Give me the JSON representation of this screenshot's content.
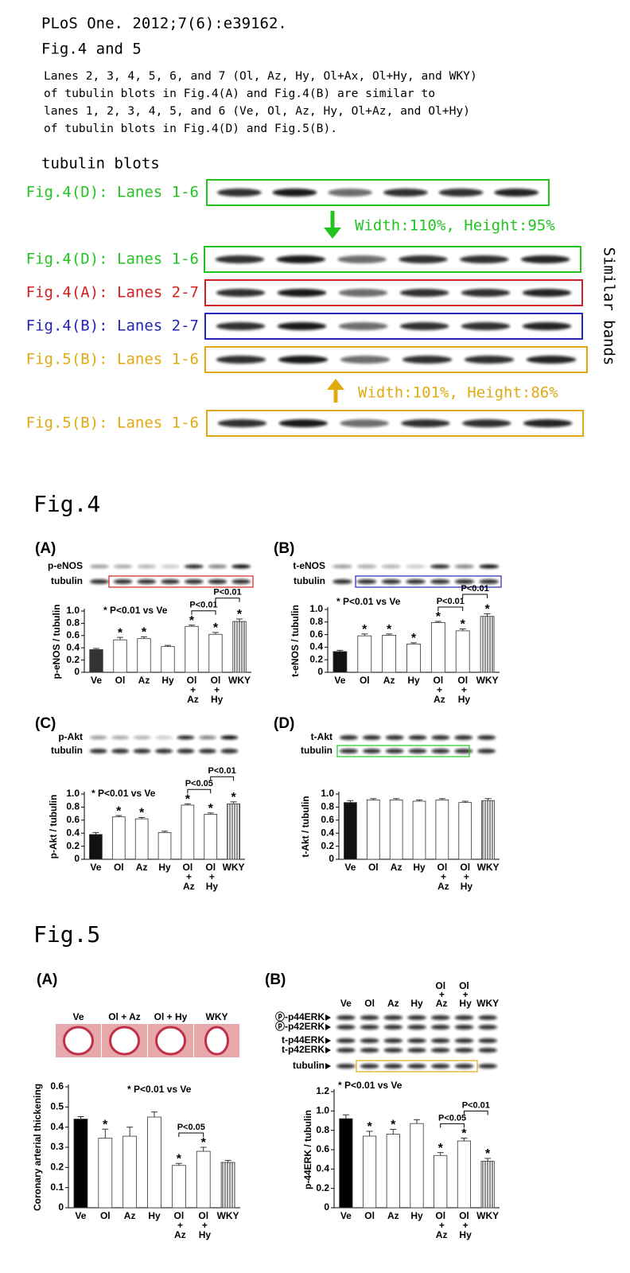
{
  "header": {
    "citation": "PLoS One. 2012;7(6):e39162.",
    "figures": "Fig.4 and 5",
    "paragraph": [
      "Lanes 2, 3, 4, 5, 6, and 7 (Ol, Az, Hy, Ol+Ax, Ol+Hy, and WKY)",
      "of tubulin blots in Fig.4(A) and Fig.4(B) are similar to",
      "lanes 1, 2, 3, 4, 5, and 6 (Ve, Ol, Az, Hy, Ol+Az, and Ol+Hy)",
      "of tubulin blots in Fig.4(D) and Fig.5(B)."
    ]
  },
  "comparison": {
    "title": "tubulin blots",
    "rows": [
      {
        "label": "Fig.4(D): Lanes 1-6",
        "color": "#22c422"
      },
      {
        "label": "Fig.4(D): Lanes 1-6",
        "color": "#22c422"
      },
      {
        "label": "Fig.4(A): Lanes 2-7",
        "color": "#d42020"
      },
      {
        "label": "Fig.4(B): Lanes 2-7",
        "color": "#2424b8"
      },
      {
        "label": "Fig.5(B): Lanes 1-6",
        "color": "#e0aa10"
      },
      {
        "label": "Fig.5(B): Lanes 1-6",
        "color": "#e0aa10"
      }
    ],
    "arrows": [
      {
        "text": "Width:110%, Height:95%",
        "color": "#22c422"
      },
      {
        "text": "Width:101%, Height:86%",
        "color": "#e0aa10"
      }
    ],
    "side_note": "Similar bands"
  },
  "fig4_title": "Fig.4",
  "fig5_title": "Fig.5",
  "chart_data": [
    {
      "type": "bar",
      "panel": "(A)",
      "blot_labels": [
        "p-eNOS",
        "tubulin"
      ],
      "note": "* P<0.01 vs Ve",
      "y_label": "p-eNOS / tubulin",
      "categories": [
        "Ve",
        "Ol",
        "Az",
        "Hy",
        "Ol + Az",
        "Ol + Hy",
        "WKY"
      ],
      "values": [
        0.37,
        0.53,
        0.55,
        0.42,
        0.75,
        0.62,
        0.83
      ],
      "errors": [
        0.02,
        0.04,
        0.03,
        0.02,
        0.02,
        0.03,
        0.04
      ],
      "stars": [
        null,
        "*",
        "*",
        null,
        "*",
        "*",
        "*"
      ],
      "brackets": [
        {
          "label": "P<0.01",
          "from": 4,
          "to": 5
        },
        {
          "label": "P<0.01",
          "from": 5,
          "to": 6
        }
      ],
      "colors": [
        "#333333",
        "#ffffff",
        "#ffffff",
        "#ffffff",
        "#ffffff",
        "#ffffff",
        "#ffffff"
      ],
      "patterns": [
        null,
        null,
        null,
        null,
        null,
        null,
        "vertical-lines"
      ],
      "ylim": [
        0,
        1
      ],
      "yticks": [
        0,
        0.2,
        0.4,
        0.6,
        0.8,
        {
          "value": 1,
          "label": "1.0"
        }
      ]
    },
    {
      "type": "bar",
      "panel": "(B)",
      "blot_labels": [
        "t-eNOS",
        "tubulin"
      ],
      "note": "* P<0.01 vs Ve",
      "y_label": "t-eNOS / tubulin",
      "categories": [
        "Ve",
        "Ol",
        "Az",
        "Hy",
        "Ol + Az",
        "Ol + Hy",
        "WKY"
      ],
      "values": [
        0.33,
        0.58,
        0.59,
        0.45,
        0.79,
        0.66,
        0.89
      ],
      "errors": [
        0.02,
        0.03,
        0.02,
        0.02,
        0.02,
        0.03,
        0.04
      ],
      "stars": [
        null,
        "*",
        "*",
        "*",
        "*",
        "*",
        "*"
      ],
      "brackets": [
        {
          "label": "P<0.01",
          "from": 4,
          "to": 5
        },
        {
          "label": "P<0.01",
          "from": 5,
          "to": 6
        }
      ],
      "colors": [
        "#111111",
        "#ffffff",
        "#ffffff",
        "#ffffff",
        "#ffffff",
        "#ffffff",
        "#ffffff"
      ],
      "patterns": [
        null,
        null,
        null,
        null,
        null,
        null,
        "vertical-lines"
      ],
      "ylim": [
        0,
        1
      ],
      "yticks": [
        0,
        0.2,
        0.4,
        0.6,
        0.8,
        {
          "value": 1,
          "label": "1.0"
        }
      ]
    },
    {
      "type": "bar",
      "panel": "(C)",
      "blot_labels": [
        "p-Akt",
        "tubulin"
      ],
      "note": "* P<0.01 vs Ve",
      "y_label": "p-Akt / tubulin",
      "categories": [
        "Ve",
        "Ol",
        "Az",
        "Hy",
        "Ol + Az",
        "Ol + Hy",
        "WKY"
      ],
      "values": [
        0.38,
        0.65,
        0.62,
        0.41,
        0.83,
        0.69,
        0.85
      ],
      "errors": [
        0.03,
        0.02,
        0.02,
        0.02,
        0.02,
        0.02,
        0.03
      ],
      "stars": [
        null,
        "*",
        "*",
        null,
        "*",
        "*",
        "*"
      ],
      "brackets": [
        {
          "label": "P<0.05",
          "from": 4,
          "to": 5
        },
        {
          "label": "P<0.01",
          "from": 5,
          "to": 6
        }
      ],
      "colors": [
        "#111111",
        "#ffffff",
        "#ffffff",
        "#ffffff",
        "#ffffff",
        "#ffffff",
        "#ffffff"
      ],
      "patterns": [
        null,
        null,
        null,
        null,
        null,
        null,
        "vertical-lines"
      ],
      "ylim": [
        0,
        1
      ],
      "yticks": [
        0,
        0.2,
        0.4,
        0.6,
        0.8,
        {
          "value": 1,
          "label": "1.0"
        }
      ]
    },
    {
      "type": "bar",
      "panel": "(D)",
      "blot_labels": [
        "t-Akt",
        "tubulin"
      ],
      "y_label": "t-Akt / tubulin",
      "categories": [
        "Ve",
        "Ol",
        "Az",
        "Hy",
        "Ol + Az",
        "Ol + Hy",
        "WKY"
      ],
      "values": [
        0.87,
        0.91,
        0.91,
        0.89,
        0.91,
        0.87,
        0.9
      ],
      "errors": [
        0.03,
        0.02,
        0.02,
        0.02,
        0.02,
        0.02,
        0.03
      ],
      "colors": [
        "#111111",
        "#ffffff",
        "#ffffff",
        "#ffffff",
        "#ffffff",
        "#ffffff",
        "#ffffff"
      ],
      "patterns": [
        null,
        null,
        null,
        null,
        null,
        null,
        "vertical-lines"
      ],
      "ylim": [
        0,
        1
      ],
      "yticks": [
        0,
        0.2,
        0.4,
        0.6,
        0.8,
        {
          "value": 1,
          "label": "1.0"
        }
      ]
    },
    {
      "type": "bar",
      "panel": "(A)",
      "images": [
        "Ve",
        "Ol + Az",
        "Ol + Hy",
        "WKY"
      ],
      "note": "* P<0.01 vs Ve",
      "y_label": "Coronary arterial thickening",
      "categories": [
        "Ve",
        "Ol",
        "Az",
        "Hy",
        "Ol + Az",
        "Ol + Hy",
        "WKY"
      ],
      "values": [
        0.44,
        0.345,
        0.355,
        0.45,
        0.21,
        0.28,
        0.225
      ],
      "errors": [
        0.012,
        0.045,
        0.045,
        0.025,
        0.01,
        0.02,
        0.01
      ],
      "stars": [
        null,
        "*",
        null,
        null,
        "*",
        "*",
        null
      ],
      "brackets": [
        {
          "label": "P<0.05",
          "from": 4,
          "to": 5
        }
      ],
      "colors": [
        "#000000",
        "#ffffff",
        "#ffffff",
        "#ffffff",
        "#ffffff",
        "#ffffff",
        "#ffffff"
      ],
      "patterns": [
        null,
        null,
        null,
        null,
        null,
        null,
        "vertical-lines"
      ],
      "ylim": [
        0,
        0.6
      ],
      "yticks": [
        0,
        0.1,
        0.2,
        0.3,
        0.4,
        0.5,
        0.6
      ]
    },
    {
      "type": "bar",
      "panel": "(B)",
      "blot_labels": [
        "ⓟ-p44ERK",
        "ⓟ-p42ERK",
        "t-p44ERK",
        "t-p42ERK",
        "tubulin"
      ],
      "note": "* P<0.01 vs Ve",
      "y_label": "p-44ERK / tubulin",
      "categories": [
        "Ve",
        "Ol",
        "Az",
        "Hy",
        "Ol + Az",
        "Ol + Hy",
        "WKY"
      ],
      "values": [
        0.92,
        0.74,
        0.76,
        0.87,
        0.54,
        0.69,
        0.48
      ],
      "errors": [
        0.04,
        0.05,
        0.05,
        0.04,
        0.03,
        0.03,
        0.03
      ],
      "stars": [
        null,
        "*",
        "*",
        null,
        "*",
        "*",
        "*"
      ],
      "brackets": [
        {
          "label": "P<0.05",
          "from": 4,
          "to": 5
        },
        {
          "label": "P<0.01",
          "from": 5,
          "to": 6
        }
      ],
      "colors": [
        "#000000",
        "#ffffff",
        "#ffffff",
        "#ffffff",
        "#ffffff",
        "#ffffff",
        "#ffffff"
      ],
      "patterns": [
        null,
        null,
        null,
        null,
        null,
        null,
        "vertical-lines"
      ],
      "ylim": [
        0,
        1.2
      ],
      "yticks": [
        0,
        0.2,
        0.4,
        0.6,
        0.8,
        {
          "value": 1,
          "label": "1.0"
        },
        1.2
      ]
    }
  ]
}
